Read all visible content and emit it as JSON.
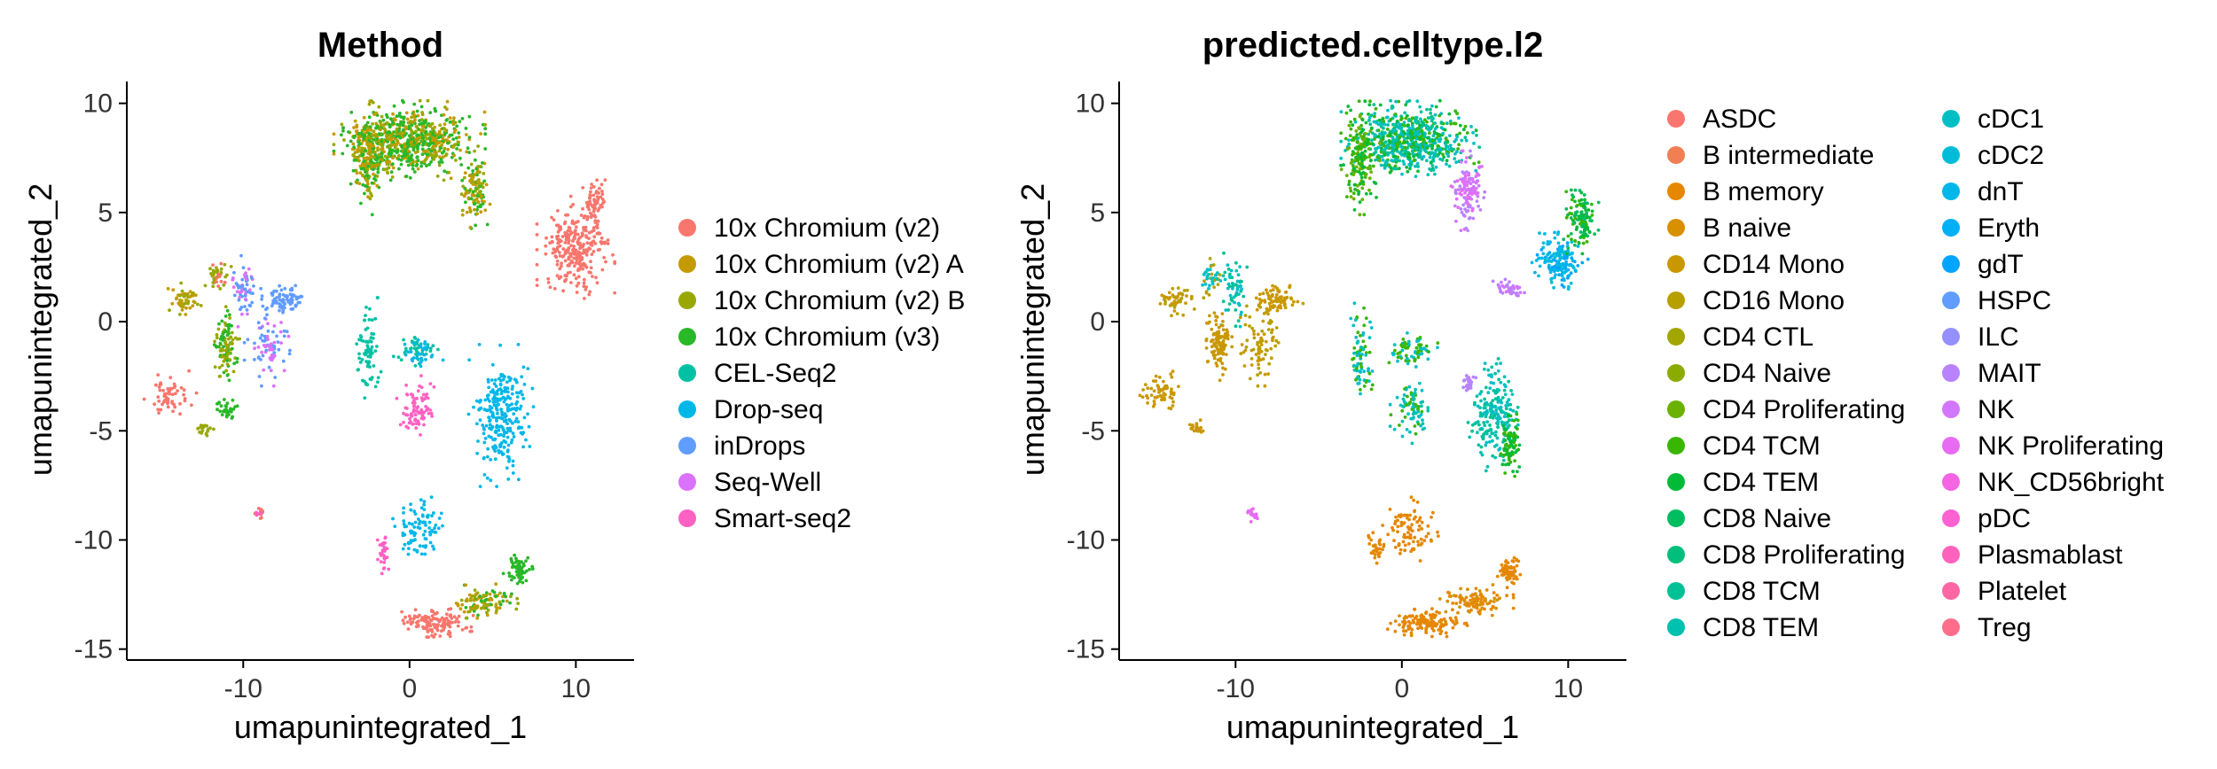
{
  "chart_data": [
    {
      "type": "scatter",
      "title": "Method",
      "xlabel": "umapunintegrated_1",
      "ylabel": "umapunintegrated_2",
      "xlim": [
        -17,
        13.5
      ],
      "ylim": [
        -15.5,
        11
      ],
      "xticks": [
        -10,
        0,
        10
      ],
      "yticks": [
        10,
        5,
        0,
        -5,
        -10,
        -15
      ],
      "grid": false,
      "legend_position": "right",
      "legend": [
        {
          "label": "10x Chromium (v2)",
          "color": "#F8766D"
        },
        {
          "label": "10x Chromium (v2) A",
          "color": "#C49A00"
        },
        {
          "label": "10x Chromium (v2) B",
          "color": "#99A800"
        },
        {
          "label": "10x Chromium (v3)",
          "color": "#28B828"
        },
        {
          "label": "CEL-Seq2",
          "color": "#00C1A3"
        },
        {
          "label": "Drop-seq",
          "color": "#00B7E8"
        },
        {
          "label": "inDrops",
          "color": "#619CFF"
        },
        {
          "label": "Seq-Well",
          "color": "#DB72FB"
        },
        {
          "label": "Smart-seq2",
          "color": "#FF61C3"
        }
      ],
      "clusters": [
        {
          "x": 0,
          "y": 8.3,
          "rx": 3.5,
          "ry": 1.4,
          "n": 700,
          "colors": [
            "#28B828",
            "#28B828",
            "#99A800",
            "#C49A00"
          ]
        },
        {
          "x": -2.5,
          "y": 7.5,
          "rx": 0.9,
          "ry": 2.0,
          "n": 180,
          "colors": [
            "#28B828",
            "#99A800",
            "#C49A00"
          ]
        },
        {
          "x": 4.0,
          "y": 6.0,
          "rx": 0.8,
          "ry": 1.4,
          "n": 120,
          "colors": [
            "#C49A00",
            "#99A800",
            "#28B828"
          ]
        },
        {
          "x": 10.0,
          "y": 3.4,
          "rx": 1.8,
          "ry": 1.8,
          "n": 280,
          "colors": [
            "#F8766D"
          ]
        },
        {
          "x": 11.2,
          "y": 5.5,
          "rx": 0.6,
          "ry": 0.8,
          "n": 60,
          "colors": [
            "#F8766D"
          ]
        },
        {
          "x": -13.5,
          "y": 1.0,
          "rx": 0.8,
          "ry": 0.6,
          "n": 50,
          "colors": [
            "#99A800",
            "#C49A00"
          ]
        },
        {
          "x": -11.5,
          "y": 2.0,
          "rx": 0.6,
          "ry": 0.7,
          "n": 40,
          "colors": [
            "#F8766D",
            "#99A800"
          ]
        },
        {
          "x": -10.0,
          "y": 1.5,
          "rx": 0.7,
          "ry": 1.5,
          "n": 60,
          "colors": [
            "#DB72FB",
            "#619CFF"
          ]
        },
        {
          "x": -7.5,
          "y": 1.0,
          "rx": 1.2,
          "ry": 0.5,
          "n": 80,
          "colors": [
            "#619CFF"
          ]
        },
        {
          "x": -11.0,
          "y": -1.0,
          "rx": 0.6,
          "ry": 1.3,
          "n": 110,
          "colors": [
            "#28B828",
            "#99A800"
          ]
        },
        {
          "x": -8.5,
          "y": -1.0,
          "rx": 1.1,
          "ry": 1.5,
          "n": 80,
          "colors": [
            "#619CFF",
            "#DB72FB"
          ]
        },
        {
          "x": -11.0,
          "y": -4.0,
          "rx": 0.5,
          "ry": 0.5,
          "n": 30,
          "colors": [
            "#28B828"
          ]
        },
        {
          "x": -14.5,
          "y": -3.3,
          "rx": 1.3,
          "ry": 0.8,
          "n": 60,
          "colors": [
            "#F8766D"
          ]
        },
        {
          "x": -12.3,
          "y": -4.9,
          "rx": 0.4,
          "ry": 0.3,
          "n": 20,
          "colors": [
            "#99A800"
          ]
        },
        {
          "x": -2.5,
          "y": -1.5,
          "rx": 0.6,
          "ry": 2.0,
          "n": 80,
          "colors": [
            "#00C1A3"
          ]
        },
        {
          "x": 0.6,
          "y": -1.3,
          "rx": 1.2,
          "ry": 0.6,
          "n": 70,
          "colors": [
            "#00B7E8",
            "#00C1A3"
          ]
        },
        {
          "x": 0.4,
          "y": -4.0,
          "rx": 0.9,
          "ry": 1.3,
          "n": 80,
          "colors": [
            "#FF61C3"
          ]
        },
        {
          "x": 5.5,
          "y": -4.3,
          "rx": 1.5,
          "ry": 2.5,
          "n": 260,
          "colors": [
            "#00B7E8"
          ]
        },
        {
          "x": -9.0,
          "y": -8.8,
          "rx": 0.3,
          "ry": 0.3,
          "n": 15,
          "colors": [
            "#F8766D",
            "#FF61C3"
          ]
        },
        {
          "x": 0.5,
          "y": -9.6,
          "rx": 1.3,
          "ry": 1.2,
          "n": 90,
          "colors": [
            "#00B7E8"
          ]
        },
        {
          "x": -1.5,
          "y": -10.5,
          "rx": 0.4,
          "ry": 0.8,
          "n": 30,
          "colors": [
            "#FF61C3"
          ]
        },
        {
          "x": 1.5,
          "y": -13.8,
          "rx": 2.0,
          "ry": 0.5,
          "n": 130,
          "colors": [
            "#F8766D"
          ]
        },
        {
          "x": 4.5,
          "y": -12.8,
          "rx": 1.7,
          "ry": 0.6,
          "n": 110,
          "colors": [
            "#28B828",
            "#99A800",
            "#C49A00"
          ]
        },
        {
          "x": 6.5,
          "y": -11.4,
          "rx": 0.7,
          "ry": 0.6,
          "n": 60,
          "colors": [
            "#28B828"
          ]
        }
      ]
    },
    {
      "type": "scatter",
      "title": "predicted.celltype.l2",
      "xlabel": "umapunintegrated_1",
      "ylabel": "umapunintegrated_2",
      "xlim": [
        -17,
        13.5
      ],
      "ylim": [
        -15.5,
        11
      ],
      "xticks": [
        -10,
        0,
        10
      ],
      "yticks": [
        10,
        5,
        0,
        -5,
        -10,
        -15
      ],
      "grid": false,
      "legend_position": "right",
      "legend": [
        {
          "label": "ASDC",
          "color": "#F8766D"
        },
        {
          "label": "B intermediate",
          "color": "#F07F54"
        },
        {
          "label": "B memory",
          "color": "#E58700"
        },
        {
          "label": "B naive",
          "color": "#D89000"
        },
        {
          "label": "CD14 Mono",
          "color": "#C99800"
        },
        {
          "label": "CD16 Mono",
          "color": "#B79F00"
        },
        {
          "label": "CD4 CTL",
          "color": "#A3A500"
        },
        {
          "label": "CD4 Naive",
          "color": "#8BAB00"
        },
        {
          "label": "CD4 Proliferating",
          "color": "#6BB100"
        },
        {
          "label": "CD4 TCM",
          "color": "#39B600"
        },
        {
          "label": "CD4 TEM",
          "color": "#00BA38"
        },
        {
          "label": "CD8 Naive",
          "color": "#00BD5F"
        },
        {
          "label": "CD8 Proliferating",
          "color": "#00BF7D"
        },
        {
          "label": "CD8 TCM",
          "color": "#00C096"
        },
        {
          "label": "CD8 TEM",
          "color": "#00C0AF"
        },
        {
          "label": "cDC1",
          "color": "#00BFC4"
        },
        {
          "label": "cDC2",
          "color": "#00BCD8"
        },
        {
          "label": "dnT",
          "color": "#00B7E9"
        },
        {
          "label": "Eryth",
          "color": "#00B0F6"
        },
        {
          "label": "gdT",
          "color": "#00A5FF"
        },
        {
          "label": "HSPC",
          "color": "#619CFF"
        },
        {
          "label": "ILC",
          "color": "#9590FF"
        },
        {
          "label": "MAIT",
          "color": "#B983FF"
        },
        {
          "label": "NK",
          "color": "#D376FF"
        },
        {
          "label": "NK Proliferating",
          "color": "#E76BF3"
        },
        {
          "label": "NK_CD56bright",
          "color": "#F564E3"
        },
        {
          "label": "pDC",
          "color": "#FD61D1"
        },
        {
          "label": "Plasmablast",
          "color": "#FF62BC"
        },
        {
          "label": "Platelet",
          "color": "#FF67A4"
        },
        {
          "label": "Treg",
          "color": "#FE6E8A"
        }
      ],
      "clusters": [
        {
          "x": 0.5,
          "y": 8.3,
          "rx": 3.2,
          "ry": 1.4,
          "n": 650,
          "colors": [
            "#00BFC4",
            "#00C0AF",
            "#00C096",
            "#39B600",
            "#00BA38"
          ]
        },
        {
          "x": -2.5,
          "y": 7.5,
          "rx": 0.9,
          "ry": 2.0,
          "n": 180,
          "colors": [
            "#6BB100",
            "#39B600",
            "#00BA38"
          ]
        },
        {
          "x": 4.0,
          "y": 6.0,
          "rx": 0.8,
          "ry": 1.4,
          "n": 120,
          "colors": [
            "#D376FF",
            "#B983FF",
            "#E76BF3"
          ]
        },
        {
          "x": 9.5,
          "y": 2.8,
          "rx": 1.3,
          "ry": 1.0,
          "n": 160,
          "colors": [
            "#00BCD8",
            "#00B7E9",
            "#00A5FF"
          ]
        },
        {
          "x": 10.8,
          "y": 4.8,
          "rx": 0.9,
          "ry": 1.3,
          "n": 120,
          "colors": [
            "#00BA38",
            "#39B600",
            "#00BD5F"
          ]
        },
        {
          "x": 6.5,
          "y": 1.5,
          "rx": 0.8,
          "ry": 0.4,
          "n": 40,
          "colors": [
            "#D376FF",
            "#B983FF"
          ]
        },
        {
          "x": -13.5,
          "y": 1.0,
          "rx": 0.8,
          "ry": 0.6,
          "n": 50,
          "colors": [
            "#B79F00",
            "#C99800"
          ]
        },
        {
          "x": -11.5,
          "y": 2.0,
          "rx": 0.6,
          "ry": 0.7,
          "n": 40,
          "colors": [
            "#00BFC4",
            "#B79F00"
          ]
        },
        {
          "x": -10.0,
          "y": 1.5,
          "rx": 0.7,
          "ry": 1.5,
          "n": 60,
          "colors": [
            "#00BFC4",
            "#00C096"
          ]
        },
        {
          "x": -7.5,
          "y": 1.0,
          "rx": 1.2,
          "ry": 0.5,
          "n": 80,
          "colors": [
            "#C99800"
          ]
        },
        {
          "x": -11.0,
          "y": -1.0,
          "rx": 0.6,
          "ry": 1.3,
          "n": 110,
          "colors": [
            "#C99800"
          ]
        },
        {
          "x": -8.5,
          "y": -1.0,
          "rx": 1.1,
          "ry": 1.5,
          "n": 80,
          "colors": [
            "#C99800",
            "#B79F00"
          ]
        },
        {
          "x": -14.5,
          "y": -3.3,
          "rx": 1.3,
          "ry": 0.8,
          "n": 60,
          "colors": [
            "#C99800"
          ]
        },
        {
          "x": -12.3,
          "y": -4.9,
          "rx": 0.4,
          "ry": 0.3,
          "n": 20,
          "colors": [
            "#C99800"
          ]
        },
        {
          "x": -2.5,
          "y": -1.5,
          "rx": 0.6,
          "ry": 2.0,
          "n": 80,
          "colors": [
            "#39B600",
            "#00BFC4"
          ]
        },
        {
          "x": 0.6,
          "y": -1.3,
          "rx": 1.2,
          "ry": 0.6,
          "n": 70,
          "colors": [
            "#00BFC4",
            "#39B600"
          ]
        },
        {
          "x": 0.6,
          "y": -4.0,
          "rx": 1.0,
          "ry": 1.3,
          "n": 80,
          "colors": [
            "#00BFC4",
            "#39B600",
            "#00C0AF"
          ]
        },
        {
          "x": 5.5,
          "y": -4.3,
          "rx": 1.3,
          "ry": 2.0,
          "n": 200,
          "colors": [
            "#00C096",
            "#00C0AF",
            "#00BFC4"
          ]
        },
        {
          "x": 6.5,
          "y": -5.8,
          "rx": 0.6,
          "ry": 1.2,
          "n": 80,
          "colors": [
            "#39B600",
            "#00BA38"
          ]
        },
        {
          "x": 4.0,
          "y": -2.8,
          "rx": 0.4,
          "ry": 0.4,
          "n": 25,
          "colors": [
            "#B983FF"
          ]
        },
        {
          "x": -9.0,
          "y": -8.8,
          "rx": 0.3,
          "ry": 0.3,
          "n": 15,
          "colors": [
            "#E76BF3"
          ]
        },
        {
          "x": 0.5,
          "y": -9.6,
          "rx": 1.3,
          "ry": 1.2,
          "n": 90,
          "colors": [
            "#E58700"
          ]
        },
        {
          "x": -1.5,
          "y": -10.5,
          "rx": 0.4,
          "ry": 0.8,
          "n": 30,
          "colors": [
            "#E58700"
          ]
        },
        {
          "x": 1.5,
          "y": -13.8,
          "rx": 2.0,
          "ry": 0.5,
          "n": 130,
          "colors": [
            "#E58700"
          ]
        },
        {
          "x": 4.5,
          "y": -12.8,
          "rx": 1.7,
          "ry": 0.6,
          "n": 110,
          "colors": [
            "#E58700",
            "#D89000"
          ]
        },
        {
          "x": 6.5,
          "y": -11.4,
          "rx": 0.7,
          "ry": 0.6,
          "n": 60,
          "colors": [
            "#E58700"
          ]
        }
      ]
    }
  ]
}
